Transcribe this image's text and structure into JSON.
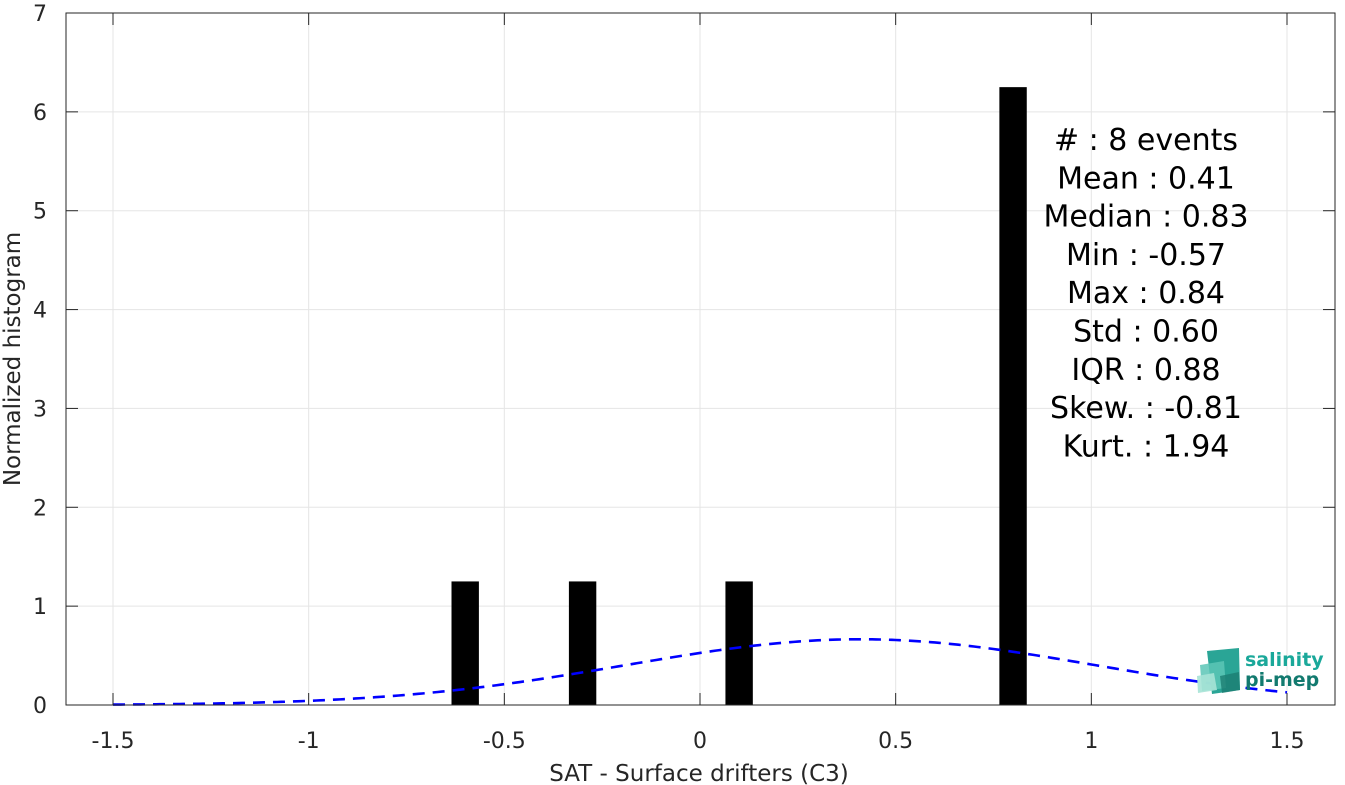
{
  "chart_data": {
    "type": "bar",
    "xlabel": "SAT - Surface drifters (C3)",
    "ylabel": "Normalized histogram",
    "xlim": [
      -1.5,
      1.5
    ],
    "ylim": [
      0,
      7
    ],
    "x_ticks": [
      "-1.5",
      "-1",
      "-0.5",
      "0",
      "0.5",
      "1",
      "1.5"
    ],
    "y_ticks": [
      "0",
      "1",
      "2",
      "3",
      "4",
      "5",
      "6",
      "7"
    ],
    "grid": true,
    "bars": [
      {
        "x": -0.6,
        "value": 1.25
      },
      {
        "x": -0.3,
        "value": 1.25
      },
      {
        "x": 0.1,
        "value": 1.25
      },
      {
        "x": 0.8,
        "value": 6.25
      }
    ],
    "bin_width": 0.07,
    "bar_color": "#000000",
    "fit_curve": {
      "style": "dashed",
      "color": "#0000ff",
      "distribution": "normal",
      "mean": 0.41,
      "std": 0.6,
      "x_range": [
        -1.5,
        1.5
      ]
    },
    "stats_lines": [
      "#  : 8 events",
      "Mean : 0.41",
      "Median : 0.83",
      "Min : -0.57",
      "Max : 0.84",
      "Std : 0.60",
      "IQR : 0.88",
      "Skew. : -0.81",
      "Kurt. : 1.94"
    ]
  },
  "logo": {
    "line1": "salinity",
    "line2": "pi-mep",
    "color1": "#1aa89a",
    "color2": "#127a6f"
  }
}
